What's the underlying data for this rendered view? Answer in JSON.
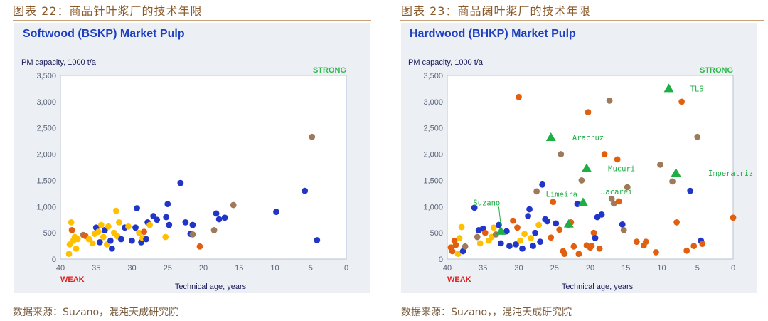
{
  "figures": [
    {
      "caption": "图表 22：商品针叶浆厂的技术年限",
      "source": "数据来源：Suzano，混沌天成研究院",
      "chart_data": {
        "type": "scatter",
        "title": "Softwood (BSKP) Market Pulp",
        "ylabel": "PM capacity, 1000 t/a",
        "xlabel": "Technical age, years",
        "xlim": [
          40,
          0
        ],
        "ylim": [
          0,
          3500
        ],
        "xticks": [
          "40",
          "35",
          "30",
          "25",
          "20",
          "15",
          "10",
          "5",
          "0"
        ],
        "yticks": [
          "0",
          "500",
          "1,000",
          "1,500",
          "2,000",
          "2,500",
          "3,000",
          "3,500"
        ],
        "grid": false,
        "strong_label": "STRONG",
        "weak_label": "WEAK",
        "colors": {
          "blue": "#2135c9",
          "yellow": "#ffc000",
          "orange": "#e0600f",
          "brown": "#9e7a5a",
          "title": "#1e3fbf",
          "strong": "#2db84a",
          "weak": "#e02020"
        },
        "points": [
          {
            "x": 38.8,
            "y": 100,
            "c": "yellow"
          },
          {
            "x": 38.7,
            "y": 280,
            "c": "yellow"
          },
          {
            "x": 38.5,
            "y": 700,
            "c": "yellow"
          },
          {
            "x": 38.4,
            "y": 550,
            "c": "orange"
          },
          {
            "x": 38.2,
            "y": 350,
            "c": "yellow"
          },
          {
            "x": 38,
            "y": 420,
            "c": "yellow"
          },
          {
            "x": 37.8,
            "y": 200,
            "c": "yellow"
          },
          {
            "x": 37.6,
            "y": 380,
            "c": "yellow"
          },
          {
            "x": 36.8,
            "y": 460,
            "c": "brown"
          },
          {
            "x": 36.5,
            "y": 440,
            "c": "orange"
          },
          {
            "x": 36,
            "y": 380,
            "c": "yellow"
          },
          {
            "x": 35.5,
            "y": 300,
            "c": "yellow"
          },
          {
            "x": 35.2,
            "y": 480,
            "c": "yellow"
          },
          {
            "x": 35,
            "y": 600,
            "c": "blue"
          },
          {
            "x": 34.7,
            "y": 520,
            "c": "yellow"
          },
          {
            "x": 34.5,
            "y": 320,
            "c": "blue"
          },
          {
            "x": 34.3,
            "y": 650,
            "c": "yellow"
          },
          {
            "x": 34,
            "y": 420,
            "c": "yellow"
          },
          {
            "x": 33.8,
            "y": 550,
            "c": "blue"
          },
          {
            "x": 33.5,
            "y": 280,
            "c": "yellow"
          },
          {
            "x": 33.3,
            "y": 620,
            "c": "yellow"
          },
          {
            "x": 33,
            "y": 350,
            "c": "blue"
          },
          {
            "x": 32.8,
            "y": 200,
            "c": "blue"
          },
          {
            "x": 32.5,
            "y": 500,
            "c": "yellow"
          },
          {
            "x": 32.2,
            "y": 920,
            "c": "yellow"
          },
          {
            "x": 32,
            "y": 430,
            "c": "yellow"
          },
          {
            "x": 31.8,
            "y": 700,
            "c": "yellow"
          },
          {
            "x": 31.5,
            "y": 380,
            "c": "blue"
          },
          {
            "x": 31,
            "y": 600,
            "c": "blue"
          },
          {
            "x": 30.5,
            "y": 620,
            "c": "yellow"
          },
          {
            "x": 30,
            "y": 350,
            "c": "blue"
          },
          {
            "x": 29.5,
            "y": 600,
            "c": "blue"
          },
          {
            "x": 29.3,
            "y": 970,
            "c": "blue"
          },
          {
            "x": 29,
            "y": 500,
            "c": "yellow"
          },
          {
            "x": 28.7,
            "y": 320,
            "c": "blue"
          },
          {
            "x": 28.5,
            "y": 400,
            "c": "yellow"
          },
          {
            "x": 28.3,
            "y": 520,
            "c": "orange"
          },
          {
            "x": 28,
            "y": 380,
            "c": "blue"
          },
          {
            "x": 27.8,
            "y": 700,
            "c": "blue"
          },
          {
            "x": 27.5,
            "y": 650,
            "c": "yellow"
          },
          {
            "x": 27,
            "y": 820,
            "c": "blue"
          },
          {
            "x": 26.5,
            "y": 750,
            "c": "blue"
          },
          {
            "x": 25.3,
            "y": 420,
            "c": "yellow"
          },
          {
            "x": 25.2,
            "y": 800,
            "c": "blue"
          },
          {
            "x": 25,
            "y": 1050,
            "c": "blue"
          },
          {
            "x": 24.8,
            "y": 650,
            "c": "blue"
          },
          {
            "x": 23.2,
            "y": 1450,
            "c": "blue"
          },
          {
            "x": 22.5,
            "y": 700,
            "c": "blue"
          },
          {
            "x": 21.8,
            "y": 480,
            "c": "blue"
          },
          {
            "x": 21.5,
            "y": 470,
            "c": "brown"
          },
          {
            "x": 21.5,
            "y": 650,
            "c": "blue"
          },
          {
            "x": 20.5,
            "y": 240,
            "c": "orange"
          },
          {
            "x": 18.5,
            "y": 550,
            "c": "brown"
          },
          {
            "x": 18.2,
            "y": 870,
            "c": "blue"
          },
          {
            "x": 17.8,
            "y": 760,
            "c": "blue"
          },
          {
            "x": 17,
            "y": 790,
            "c": "blue"
          },
          {
            "x": 15.8,
            "y": 1030,
            "c": "brown"
          },
          {
            "x": 9.8,
            "y": 900,
            "c": "blue"
          },
          {
            "x": 5.8,
            "y": 1300,
            "c": "blue"
          },
          {
            "x": 4.8,
            "y": 2330,
            "c": "brown"
          },
          {
            "x": 4.1,
            "y": 360,
            "c": "blue"
          }
        ],
        "annotations": []
      }
    },
    {
      "caption": "图表 23：商品阔叶浆厂的技术年限",
      "source": "数据来源：Suzano，，混沌天成研究院",
      "chart_data": {
        "type": "scatter",
        "title": "Hardwood (BHKP) Market Pulp",
        "ylabel": "PM capacity, 1000 t/a",
        "xlabel": "Technical age, years",
        "xlim": [
          40,
          0
        ],
        "ylim": [
          0,
          3500
        ],
        "xticks": [
          "40",
          "35",
          "30",
          "25",
          "20",
          "15",
          "10",
          "5",
          "0"
        ],
        "yticks": [
          "0",
          "500",
          "1,000",
          "1,500",
          "2,000",
          "2,500",
          "3,000",
          "3,500"
        ],
        "grid": false,
        "strong_label": "STRONG",
        "weak_label": "WEAK",
        "colors": {
          "blue": "#2135c9",
          "yellow": "#ffc000",
          "orange": "#e0600f",
          "brown": "#9e7a5a",
          "green": "#1fae45",
          "title": "#1e3fbf",
          "strong": "#2db84a",
          "weak": "#e02020"
        },
        "points": [
          {
            "x": 39.5,
            "y": 220,
            "c": "orange"
          },
          {
            "x": 39.3,
            "y": 150,
            "c": "orange"
          },
          {
            "x": 39,
            "y": 350,
            "c": "orange"
          },
          {
            "x": 38.8,
            "y": 270,
            "c": "orange"
          },
          {
            "x": 38.5,
            "y": 100,
            "c": "yellow"
          },
          {
            "x": 38.3,
            "y": 400,
            "c": "yellow"
          },
          {
            "x": 38,
            "y": 610,
            "c": "yellow"
          },
          {
            "x": 37.8,
            "y": 150,
            "c": "blue"
          },
          {
            "x": 37.5,
            "y": 240,
            "c": "brown"
          },
          {
            "x": 36.2,
            "y": 980,
            "c": "blue"
          },
          {
            "x": 35.8,
            "y": 420,
            "c": "brown"
          },
          {
            "x": 35.6,
            "y": 550,
            "c": "blue"
          },
          {
            "x": 35.4,
            "y": 300,
            "c": "yellow"
          },
          {
            "x": 35,
            "y": 580,
            "c": "blue"
          },
          {
            "x": 34.7,
            "y": 500,
            "c": "orange"
          },
          {
            "x": 34.2,
            "y": 350,
            "c": "yellow"
          },
          {
            "x": 33.8,
            "y": 420,
            "c": "yellow"
          },
          {
            "x": 33.5,
            "y": 600,
            "c": "yellow"
          },
          {
            "x": 33.2,
            "y": 470,
            "c": "brown"
          },
          {
            "x": 32.8,
            "y": 650,
            "c": "blue"
          },
          {
            "x": 32.5,
            "y": 300,
            "c": "blue"
          },
          {
            "x": 31.7,
            "y": 530,
            "c": "blue"
          },
          {
            "x": 31.3,
            "y": 250,
            "c": "blue"
          },
          {
            "x": 30.8,
            "y": 730,
            "c": "orange"
          },
          {
            "x": 30.4,
            "y": 280,
            "c": "blue"
          },
          {
            "x": 30.2,
            "y": 600,
            "c": "orange"
          },
          {
            "x": 30,
            "y": 3090,
            "c": "orange"
          },
          {
            "x": 29.8,
            "y": 350,
            "c": "yellow"
          },
          {
            "x": 29.5,
            "y": 200,
            "c": "blue"
          },
          {
            "x": 29.2,
            "y": 480,
            "c": "yellow"
          },
          {
            "x": 28.7,
            "y": 820,
            "c": "blue"
          },
          {
            "x": 28.5,
            "y": 950,
            "c": "blue"
          },
          {
            "x": 28.3,
            "y": 400,
            "c": "yellow"
          },
          {
            "x": 28,
            "y": 250,
            "c": "blue"
          },
          {
            "x": 27.7,
            "y": 500,
            "c": "blue"
          },
          {
            "x": 27.5,
            "y": 1290,
            "c": "brown"
          },
          {
            "x": 27.2,
            "y": 650,
            "c": "yellow"
          },
          {
            "x": 27,
            "y": 330,
            "c": "blue"
          },
          {
            "x": 26.7,
            "y": 1420,
            "c": "blue"
          },
          {
            "x": 26.3,
            "y": 760,
            "c": "blue"
          },
          {
            "x": 26,
            "y": 720,
            "c": "blue"
          },
          {
            "x": 25.5,
            "y": 410,
            "c": "orange"
          },
          {
            "x": 25.2,
            "y": 1090,
            "c": "orange"
          },
          {
            "x": 24.8,
            "y": 680,
            "c": "blue"
          },
          {
            "x": 24.3,
            "y": 560,
            "c": "orange"
          },
          {
            "x": 24.1,
            "y": 2000,
            "c": "brown"
          },
          {
            "x": 23.8,
            "y": 150,
            "c": "orange"
          },
          {
            "x": 23.6,
            "y": 100,
            "c": "orange"
          },
          {
            "x": 23,
            "y": 650,
            "c": "orange"
          },
          {
            "x": 22.7,
            "y": 700,
            "c": "orange"
          },
          {
            "x": 22.3,
            "y": 240,
            "c": "orange"
          },
          {
            "x": 21.8,
            "y": 1050,
            "c": "blue"
          },
          {
            "x": 21.6,
            "y": 100,
            "c": "orange"
          },
          {
            "x": 21.2,
            "y": 1500,
            "c": "brown"
          },
          {
            "x": 20.5,
            "y": 260,
            "c": "orange"
          },
          {
            "x": 20.3,
            "y": 2800,
            "c": "orange"
          },
          {
            "x": 20,
            "y": 220,
            "c": "orange"
          },
          {
            "x": 19.8,
            "y": 250,
            "c": "orange"
          },
          {
            "x": 19.5,
            "y": 500,
            "c": "orange"
          },
          {
            "x": 19.3,
            "y": 400,
            "c": "blue"
          },
          {
            "x": 19,
            "y": 800,
            "c": "blue"
          },
          {
            "x": 18.7,
            "y": 200,
            "c": "orange"
          },
          {
            "x": 18.4,
            "y": 850,
            "c": "blue"
          },
          {
            "x": 18,
            "y": 2000,
            "c": "orange"
          },
          {
            "x": 17.3,
            "y": 3020,
            "c": "brown"
          },
          {
            "x": 17,
            "y": 1150,
            "c": "brown"
          },
          {
            "x": 16.7,
            "y": 1060,
            "c": "brown"
          },
          {
            "x": 16.2,
            "y": 1900,
            "c": "orange"
          },
          {
            "x": 16,
            "y": 1100,
            "c": "orange"
          },
          {
            "x": 15.5,
            "y": 660,
            "c": "blue"
          },
          {
            "x": 15.3,
            "y": 550,
            "c": "brown"
          },
          {
            "x": 14.8,
            "y": 1370,
            "c": "brown"
          },
          {
            "x": 13.5,
            "y": 330,
            "c": "orange"
          },
          {
            "x": 12.5,
            "y": 260,
            "c": "orange"
          },
          {
            "x": 12.2,
            "y": 330,
            "c": "orange"
          },
          {
            "x": 10.8,
            "y": 130,
            "c": "orange"
          },
          {
            "x": 10.2,
            "y": 1800,
            "c": "brown"
          },
          {
            "x": 8.5,
            "y": 1480,
            "c": "brown"
          },
          {
            "x": 7.9,
            "y": 700,
            "c": "orange"
          },
          {
            "x": 7.2,
            "y": 3000,
            "c": "orange"
          },
          {
            "x": 6.5,
            "y": 160,
            "c": "orange"
          },
          {
            "x": 6,
            "y": 1300,
            "c": "blue"
          },
          {
            "x": 5.5,
            "y": 250,
            "c": "orange"
          },
          {
            "x": 5,
            "y": 2330,
            "c": "brown"
          },
          {
            "x": 4.5,
            "y": 350,
            "c": "blue"
          },
          {
            "x": 4.3,
            "y": 290,
            "c": "orange"
          },
          {
            "x": 0,
            "y": 790,
            "c": "orange"
          }
        ],
        "annotations": [
          {
            "label": "Suzano",
            "x": 32.5,
            "y": 530,
            "lx": 34.5,
            "ly": 1080
          },
          {
            "label": "Aracruz",
            "x": 25.5,
            "y": 2320,
            "lx": 22.5,
            "ly": 2320
          },
          {
            "label": "Mucuri",
            "x": 20.5,
            "y": 1730,
            "lx": 17.5,
            "ly": 1730
          },
          {
            "label": "Jacarei",
            "x": 21,
            "y": 1080,
            "lx": 18.5,
            "ly": 1290
          },
          {
            "label": "Limeira",
            "x": 23,
            "y": 670,
            "lx": 24,
            "ly": 1240
          },
          {
            "label": "TLS",
            "x": 9,
            "y": 3250,
            "lx": 6,
            "ly": 3250
          },
          {
            "label": "Imperatriz",
            "x": 8,
            "y": 1640,
            "lx": 3.5,
            "ly": 1640
          }
        ]
      }
    }
  ]
}
